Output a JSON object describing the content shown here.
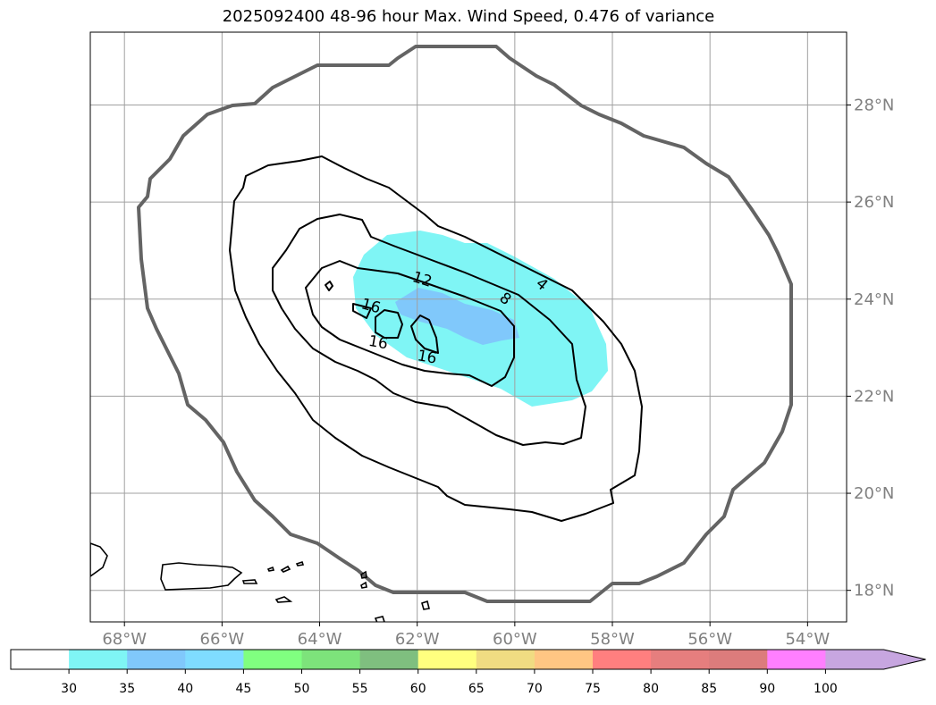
{
  "chart_data": {
    "type": "contour-map",
    "title": "2025092400 48-96 hour Max. Wind Speed, 0.476 of variance",
    "lon_range": [
      -68.7,
      -53.2
    ],
    "lat_range": [
      17.35,
      29.5
    ],
    "grid": true,
    "lon_ticks": [
      {
        "value": -68,
        "label": "68°W"
      },
      {
        "value": -66,
        "label": "66°W"
      },
      {
        "value": -64,
        "label": "64°W"
      },
      {
        "value": -62,
        "label": "62°W"
      },
      {
        "value": -60,
        "label": "60°W"
      },
      {
        "value": -58,
        "label": "58°W"
      },
      {
        "value": -56,
        "label": "56°W"
      },
      {
        "value": -54,
        "label": "54°W"
      }
    ],
    "lat_ticks": [
      {
        "value": 18,
        "label": "18°N"
      },
      {
        "value": 20,
        "label": "20°N"
      },
      {
        "value": 22,
        "label": "22°N"
      },
      {
        "value": 24,
        "label": "24°N"
      },
      {
        "value": 26,
        "label": "26°N"
      },
      {
        "value": 28,
        "label": "28°N"
      }
    ],
    "contour_labels": [
      {
        "text": "4",
        "lon": -59.45,
        "lat": 24.3,
        "rot": 40
      },
      {
        "text": "8",
        "lon": -60.2,
        "lat": 24.0,
        "rot": 38
      },
      {
        "text": "12",
        "lon": -61.9,
        "lat": 24.4,
        "rot": 18
      },
      {
        "text": "16",
        "lon": -62.95,
        "lat": 23.85,
        "rot": 15
      },
      {
        "text": "16",
        "lon": -62.8,
        "lat": 23.1,
        "rot": 10
      },
      {
        "text": "16",
        "lon": -61.8,
        "lat": 22.8,
        "rot": 10
      }
    ],
    "colorbar": {
      "bounds": [
        30,
        35,
        40,
        45,
        50,
        55,
        60,
        65,
        70,
        75,
        80,
        85,
        90,
        100
      ],
      "colors": [
        "#ffffff",
        "#7ff5f5",
        "#80c8fb",
        "#7fdcff",
        "#80ff80",
        "#7de37b",
        "#7fbf7f",
        "#ffff7f",
        "#f0dc82",
        "#ffc683",
        "#ff7f7f",
        "#e67e7e",
        "#dc7c7c",
        "#ff7fff",
        "#c7a6e0"
      ],
      "extend": "max"
    }
  }
}
